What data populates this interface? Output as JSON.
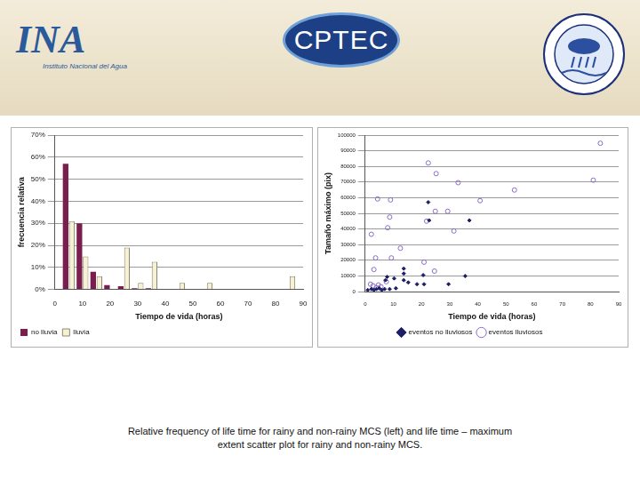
{
  "header": {
    "logos": [
      {
        "text": "INA",
        "subtitle": "Instituto Nacional del Agua"
      },
      {
        "text": "CPTEC"
      }
    ]
  },
  "chart_data": [
    {
      "type": "bar",
      "xlabel": "Tiempo de vida (horas)",
      "ylabel": "frecuencia relativa",
      "x": [
        5,
        10,
        15,
        20,
        25,
        30,
        35,
        40,
        45,
        50,
        55,
        60,
        65,
        70,
        75,
        80,
        85
      ],
      "series": [
        {
          "name": "no lluvia",
          "color": "#7a1e4e",
          "values": [
            57,
            30,
            8,
            2,
            1.5,
            0.5,
            0.5,
            0,
            0,
            0,
            0,
            0,
            0,
            0,
            0,
            0,
            0
          ]
        },
        {
          "name": "lluvia",
          "color": "#f6f1d3",
          "values": [
            31,
            15,
            6,
            0,
            19,
            3,
            12.5,
            0,
            3,
            0,
            3,
            0,
            0,
            0,
            0,
            0,
            6
          ]
        }
      ],
      "xlim": [
        0,
        90
      ],
      "xticks": [
        0,
        10,
        20,
        30,
        40,
        50,
        60,
        70,
        80,
        90
      ],
      "ylim": [
        0,
        70
      ],
      "yticks": [
        {
          "value": 0,
          "label": "0%"
        },
        {
          "value": 10,
          "label": "10%"
        },
        {
          "value": 20,
          "label": "20%"
        },
        {
          "value": 30,
          "label": "30%"
        },
        {
          "value": 40,
          "label": "40%"
        },
        {
          "value": 50,
          "label": "50%"
        },
        {
          "value": 60,
          "label": "60%"
        },
        {
          "value": 70,
          "label": "70%"
        }
      ],
      "grid": true,
      "legend": "bottom-left"
    },
    {
      "type": "scatter",
      "xlabel": "Tiempo de vida (horas)",
      "ylabel": "Tamaño máximo (pix)",
      "series": [
        {
          "name": "eventos no lluviosos",
          "color": "#1c1f66",
          "marker": "diamond",
          "x": [
            22.4,
            37,
            22.7,
            13.7,
            13.7,
            20.6,
            7.8,
            10.3,
            13.7,
            15.3,
            18.4,
            20.9,
            29.6,
            7.2,
            35.5,
            0.9,
            2.2,
            3.1,
            4,
            5,
            5.9,
            6.9,
            8.7,
            10.9
          ],
          "values": [
            57100,
            45500,
            45500,
            14700,
            11500,
            10500,
            9400,
            8400,
            7300,
            5800,
            4700,
            4700,
            4700,
            7300,
            9900,
            1000,
            1600,
            1000,
            1600,
            2100,
            1000,
            1600,
            1600,
            2100
          ]
        },
        {
          "name": "eventos lluviosos",
          "color": "#8a6cc4",
          "marker": "open_circle",
          "x": [
            83.5,
            81,
            22.4,
            25.2,
            33,
            4.4,
            9,
            40.8,
            53,
            29.3,
            24.9,
            21.8,
            8.7,
            8,
            31.5,
            2.2,
            3.7,
            12.5,
            9.3,
            20.9,
            3.1,
            24.6,
            1.9,
            2.8,
            4,
            4.7,
            5.6,
            7.5
          ],
          "values": [
            94800,
            71200,
            82200,
            75400,
            69600,
            59200,
            58600,
            58100,
            64900,
            51300,
            51300,
            45000,
            47600,
            40800,
            38700,
            36600,
            21500,
            27700,
            21500,
            18800,
            14100,
            13100,
            4700,
            3700,
            2600,
            4200,
            3100,
            6300
          ]
        }
      ],
      "xlim": [
        0,
        90
      ],
      "xticks": [
        0,
        10,
        20,
        30,
        40,
        50,
        60,
        70,
        80,
        90
      ],
      "ylim": [
        0,
        100000
      ],
      "yticks": [
        0,
        10000,
        20000,
        30000,
        40000,
        50000,
        60000,
        70000,
        80000,
        90000,
        100000
      ],
      "grid": true,
      "legend": "bottom"
    }
  ],
  "caption": [
    "Relative frequency of life time for rainy and non-rainy MCS (left) and life time – maximum",
    "extent scatter plot for rainy and non-rainy MCS."
  ]
}
